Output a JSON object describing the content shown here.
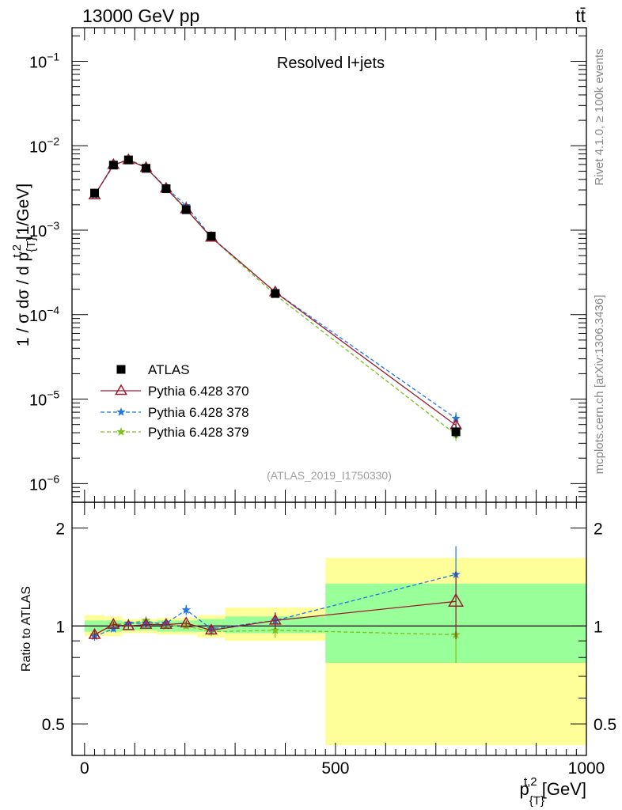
{
  "header": {
    "energy_label": "13000 GeV pp",
    "process_label": "tt̄"
  },
  "side_text": {
    "rivet": "Rivet 4.1.0, ≥ 100k events",
    "mcplots": "mcplots.cern.ch [arXiv:1306.3436]"
  },
  "colors": {
    "atlas": "#000000",
    "p370": "#9b1b30",
    "p378": "#1f77e0",
    "p379": "#7cc21b",
    "band_green": "#99ff99",
    "band_yellow": "#ffff99"
  },
  "chart_data": [
    {
      "type": "scatter",
      "panel": "main",
      "title": "Resolved l+jets",
      "analysis_label": "(ATLAS_2019_I1750330)",
      "ylabel_parts": [
        "1 / σ dσ / d p",
        "{T}",
        "t,2",
        " [1/GeV]"
      ],
      "yscale": "log",
      "ylim": [
        6e-07,
        0.25
      ],
      "xlim": [
        -25,
        1000
      ],
      "y_ticks": [
        {
          "value": 1e-06,
          "base": "10",
          "exp": "−6"
        },
        {
          "value": 1e-05,
          "base": "10",
          "exp": "−5"
        },
        {
          "value": 0.0001,
          "base": "10",
          "exp": "−4"
        },
        {
          "value": 0.001,
          "base": "10",
          "exp": "−3"
        },
        {
          "value": 0.01,
          "base": "10",
          "exp": "−2"
        },
        {
          "value": 0.1,
          "base": "10",
          "exp": "−1"
        }
      ],
      "bin_edges": [
        0,
        40,
        75,
        100,
        145,
        180,
        225,
        280,
        480,
        1000
      ],
      "x": [
        20,
        57.5,
        87.5,
        122.5,
        162.5,
        202.5,
        252.5,
        380,
        740
      ],
      "series": [
        {
          "name": "ATLAS",
          "key": "atlas",
          "marker": "square",
          "values": [
            0.00275,
            0.0059,
            0.0068,
            0.0054,
            0.0031,
            0.00175,
            0.00085,
            0.000178,
            4.1e-06
          ]
        },
        {
          "name": "Pythia 6.428 370",
          "key": "p370",
          "marker": "triangle",
          "values": [
            0.0026,
            0.00595,
            0.00678,
            0.0055,
            0.00313,
            0.00178,
            0.00082,
            0.000185,
            4.9e-06
          ]
        },
        {
          "name": "Pythia 6.428 378",
          "key": "p378",
          "marker": "star",
          "values": [
            0.0026,
            0.0058,
            0.0069,
            0.0055,
            0.0032,
            0.00195,
            0.00083,
            0.000185,
            5.9e-06
          ]
        },
        {
          "name": "Pythia 6.428 379",
          "key": "p379",
          "marker": "star",
          "values": [
            0.0026,
            0.00595,
            0.0069,
            0.0056,
            0.0031,
            0.00175,
            0.00082,
            0.000172,
            3.8e-06
          ]
        }
      ]
    },
    {
      "type": "scatter",
      "panel": "ratio",
      "ylabel": "Ratio to ATLAS",
      "xlabel_parts": [
        "p",
        "{T}",
        "t,2",
        " [GeV]"
      ],
      "ylim": [
        0.4,
        2.4
      ],
      "xlim": [
        -25,
        1000
      ],
      "x_ticks": [
        0,
        500,
        1000
      ],
      "y_ticks": [
        0.5,
        1,
        2
      ],
      "bin_edges": [
        0,
        40,
        75,
        100,
        145,
        180,
        225,
        280,
        480,
        1000
      ],
      "x": [
        20,
        57.5,
        87.5,
        122.5,
        162.5,
        202.5,
        252.5,
        380,
        740
      ],
      "band_green": [
        [
          0.96,
          1.04
        ],
        [
          0.96,
          1.04
        ],
        [
          0.97,
          1.03
        ],
        [
          0.97,
          1.03
        ],
        [
          0.96,
          1.04
        ],
        [
          0.96,
          1.04
        ],
        [
          0.96,
          1.05
        ],
        [
          0.95,
          1.07
        ],
        [
          0.77,
          1.35
        ]
      ],
      "band_yellow": [
        [
          0.93,
          1.08
        ],
        [
          0.93,
          1.07
        ],
        [
          0.95,
          1.05
        ],
        [
          0.95,
          1.05
        ],
        [
          0.94,
          1.06
        ],
        [
          0.94,
          1.06
        ],
        [
          0.92,
          1.08
        ],
        [
          0.9,
          1.14
        ],
        [
          0.43,
          1.62
        ]
      ],
      "series": [
        {
          "name": "Pythia 6.428 370",
          "key": "p370",
          "marker": "triangle",
          "values": [
            0.94,
            1.01,
            1.0,
            1.01,
            1.01,
            1.02,
            0.97,
            1.04,
            1.19
          ],
          "err": [
            0.03,
            0.02,
            0.02,
            0.02,
            0.02,
            0.02,
            0.03,
            0.06,
            0.28
          ]
        },
        {
          "name": "Pythia 6.428 378",
          "key": "p378",
          "marker": "star",
          "values": [
            0.93,
            0.98,
            1.02,
            1.02,
            1.02,
            1.12,
            0.98,
            1.04,
            1.44
          ],
          "err": [
            0.03,
            0.02,
            0.02,
            0.02,
            0.02,
            0.04,
            0.03,
            0.06,
            0.32
          ]
        },
        {
          "name": "Pythia 6.428 379",
          "key": "p379",
          "marker": "star",
          "values": [
            0.94,
            1.01,
            1.02,
            1.04,
            1.0,
            1.0,
            0.96,
            0.97,
            0.94
          ],
          "err": [
            0.03,
            0.02,
            0.02,
            0.02,
            0.02,
            0.02,
            0.03,
            0.05,
            0.17
          ]
        }
      ]
    }
  ]
}
